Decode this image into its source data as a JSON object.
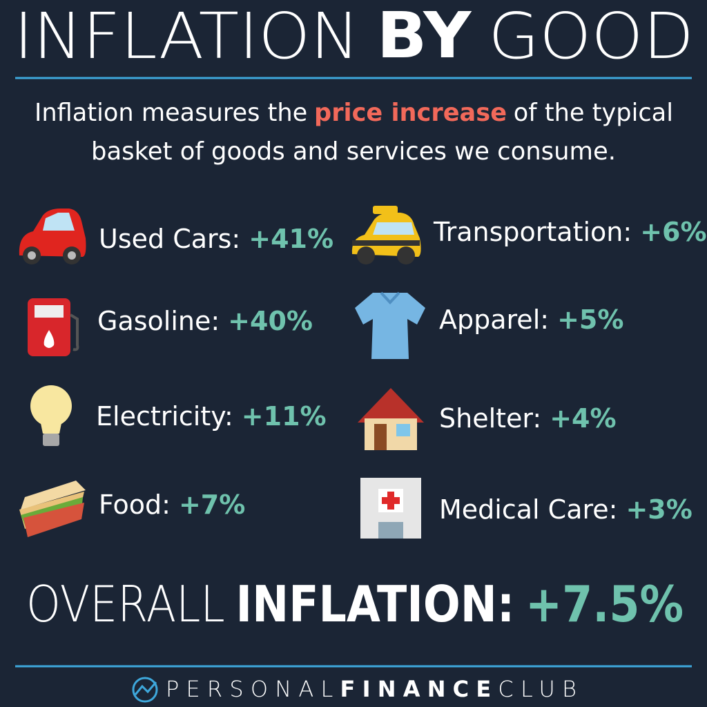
{
  "header": {
    "title": [
      "INFLATION",
      "BY",
      "GOOD"
    ]
  },
  "intro": {
    "line1": [
      "Inflation measures the",
      "price increase",
      "of the typical"
    ],
    "line2": "basket of goods and services we consume."
  },
  "items": [
    {
      "label": "Used Cars:",
      "value": "+41%"
    },
    {
      "label": "Gasoline:",
      "value": "+40%"
    },
    {
      "label": "Electricity:",
      "value": "+11%"
    },
    {
      "label": "Food:",
      "value": "+7%"
    },
    {
      "label": "Transportation:",
      "value": "+6%"
    },
    {
      "label": "Apparel:",
      "value": "+5%"
    },
    {
      "label": "Shelter:",
      "value": "+4%"
    },
    {
      "label": "Medical Care:",
      "value": "+3%"
    }
  ],
  "overall": {
    "light": "OVERALL",
    "bold": "INFLATION:",
    "value": "+7.5%"
  },
  "footer": {
    "brand": [
      "PERSONAL",
      "FINANCE",
      "CLUB"
    ]
  }
}
